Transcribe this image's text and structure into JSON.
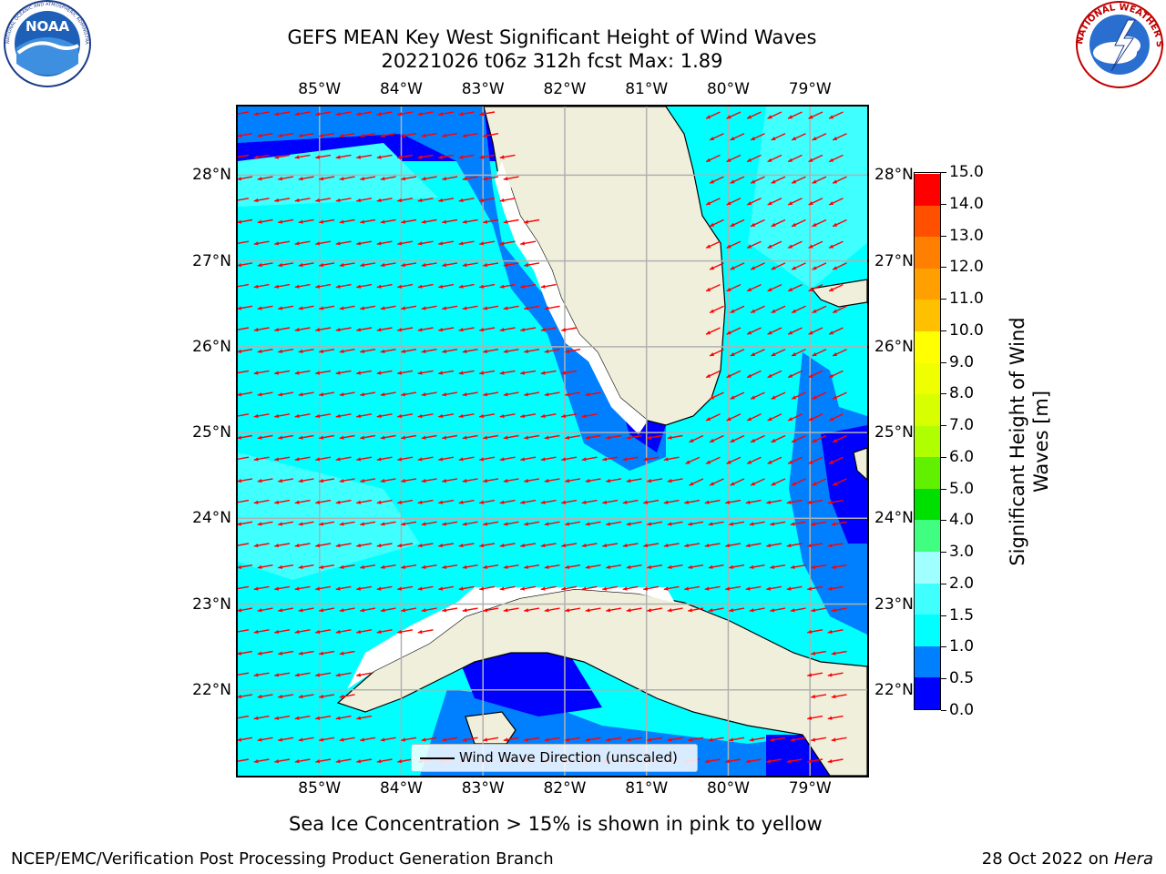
{
  "header": {
    "title_line1": "GEFS MEAN Key West Significant Height of Wind Waves",
    "title_line2": "20221026 t06z 312h fcst   Max: 1.89"
  },
  "logos": {
    "noaa_text": "NOAA",
    "noaa_ring": "NATIONAL OCEANIC AND ATMOSPHERIC ADMINISTRATION · U.S. DEPARTMENT OF COMMERCE",
    "nws_ring": "NATIONAL WEATHER SERVICE"
  },
  "map": {
    "lon_labels": [
      "85°W",
      "84°W",
      "83°W",
      "82°W",
      "81°W",
      "80°W",
      "79°W"
    ],
    "lat_labels": [
      "28°N",
      "27°N",
      "26°N",
      "25°N",
      "24°N",
      "23°N",
      "22°N"
    ],
    "lon_values": [
      -85,
      -84,
      -83,
      -82,
      -81,
      -80,
      -79
    ],
    "lat_values": [
      28,
      27,
      26,
      25,
      24,
      23,
      22
    ],
    "extent": {
      "lon_min": -86.0,
      "lon_max": -78.3,
      "lat_min": 21.0,
      "lat_max": 28.8
    },
    "ocean_color": "#00ffff",
    "land_color": "#efefdc",
    "arrow_color": "#ff0000",
    "legend_label": "Wind Wave Direction (unscaled)"
  },
  "colorbar": {
    "title_line1": "Significant Height of Wind",
    "title_line2": "Waves [m]",
    "ticks": [
      "15.0",
      "14.0",
      "13.0",
      "12.0",
      "11.0",
      "10.0",
      "9.0",
      "8.0",
      "7.0",
      "6.0",
      "5.0",
      "4.0",
      "3.0",
      "2.0",
      "1.5",
      "1.0",
      "0.5",
      "0.0"
    ],
    "bins": [
      {
        "from": 0.0,
        "to": 0.5,
        "color": "#0000ff"
      },
      {
        "from": 0.5,
        "to": 1.0,
        "color": "#0080ff"
      },
      {
        "from": 1.0,
        "to": 1.5,
        "color": "#00ffff"
      },
      {
        "from": 1.5,
        "to": 2.0,
        "color": "#40ffff"
      },
      {
        "from": 2.0,
        "to": 3.0,
        "color": "#a0ffff"
      },
      {
        "from": 3.0,
        "to": 4.0,
        "color": "#40ff80"
      },
      {
        "from": 4.0,
        "to": 5.0,
        "color": "#00e000"
      },
      {
        "from": 5.0,
        "to": 6.0,
        "color": "#60f000"
      },
      {
        "from": 6.0,
        "to": 7.0,
        "color": "#b0ff00"
      },
      {
        "from": 7.0,
        "to": 8.0,
        "color": "#d8ff00"
      },
      {
        "from": 8.0,
        "to": 9.0,
        "color": "#f0ff00"
      },
      {
        "from": 9.0,
        "to": 10.0,
        "color": "#ffff00"
      },
      {
        "from": 10.0,
        "to": 11.0,
        "color": "#ffc000"
      },
      {
        "from": 11.0,
        "to": 12.0,
        "color": "#ffa000"
      },
      {
        "from": 12.0,
        "to": 13.0,
        "color": "#ff8000"
      },
      {
        "from": 13.0,
        "to": 14.0,
        "color": "#ff5000"
      },
      {
        "from": 14.0,
        "to": 15.0,
        "color": "#ff0000"
      }
    ]
  },
  "footer": {
    "sea_ice_note": "Sea Ice Concentration > 15% is shown in pink to yellow",
    "branch": "NCEP/EMC/Verification Post Processing Product Generation Branch",
    "date": "28 Oct 2022 on ",
    "machine": "Hera"
  }
}
